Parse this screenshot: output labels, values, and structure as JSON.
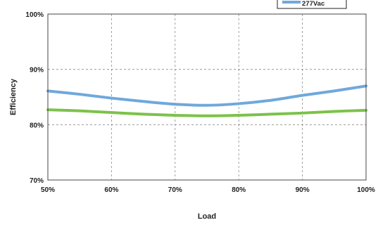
{
  "chart_data": {
    "type": "line",
    "title": "",
    "xlabel": "Load",
    "ylabel": "Efficiency",
    "x": [
      50,
      55,
      60,
      65,
      70,
      75,
      80,
      85,
      90,
      95,
      100
    ],
    "x_tick_labels": [
      "50%",
      "60%",
      "70%",
      "80%",
      "90%",
      "100%"
    ],
    "y_tick_labels": [
      "70%",
      "80%",
      "90%",
      "100%"
    ],
    "xlim": [
      50,
      100
    ],
    "ylim": [
      70,
      100
    ],
    "grid": true,
    "legend_position": "top-right",
    "series": [
      {
        "name": "277Vac",
        "color": "#6fa8dc",
        "values": [
          86.1,
          85.5,
          84.8,
          84.2,
          83.7,
          83.5,
          83.8,
          84.4,
          85.3,
          86.1,
          87.0
        ]
      },
      {
        "color": "#7cc24a",
        "values": [
          82.7,
          82.5,
          82.2,
          81.9,
          81.7,
          81.6,
          81.7,
          81.9,
          82.1,
          82.4,
          82.6
        ]
      }
    ]
  }
}
